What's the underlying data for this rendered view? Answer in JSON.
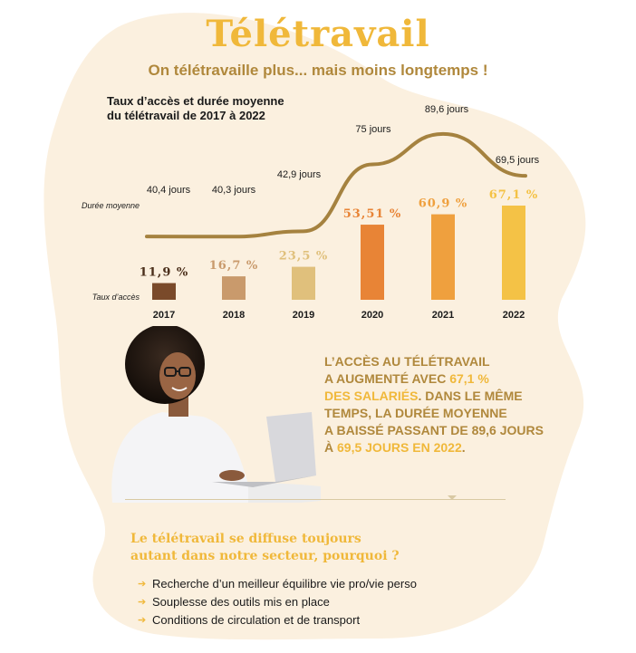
{
  "header": {
    "title": "Télétravail",
    "subtitle": "On télétravaille plus... mais moins longtemps !"
  },
  "chart_data": {
    "type": "bar",
    "title_lines": [
      "Taux d’accès et durée moyenne",
      "du télétravail de 2017 à 2022"
    ],
    "categories": [
      "2017",
      "2018",
      "2019",
      "2020",
      "2021",
      "2022"
    ],
    "series": [
      {
        "name": "Taux d’accès",
        "type": "bar",
        "values": [
          11.9,
          16.7,
          23.5,
          53.51,
          60.9,
          67.1
        ],
        "labels": [
          "11,9 %",
          "16,7 %",
          "23,5 %",
          "53,51 %",
          "60,9 %",
          "67,1 %"
        ],
        "colors": [
          "#7a4a2a",
          "#c99a6c",
          "#e0c07c",
          "#e88436",
          "#efa03e",
          "#f4c246"
        ],
        "label_colors": [
          "#4a2e1a",
          "#c99a6c",
          "#e0c07c",
          "#e88436",
          "#efa03e",
          "#f4c246"
        ]
      },
      {
        "name": "Durée moyenne",
        "type": "line",
        "values": [
          40.4,
          40.3,
          42.9,
          75,
          89.6,
          69.5
        ],
        "labels": [
          "40,4 jours",
          "40,3 jours",
          "42,9 jours",
          "75 jours",
          "89,6 jours",
          "69,5 jours"
        ],
        "color": "#a5823f"
      }
    ]
  },
  "callout": {
    "line1": "L’ACCÈS AU TÉLÉTRAVAIL",
    "line2a": "A AUGMENTÉ AVEC ",
    "line2b": "67,1 %",
    "line3a": "DES SALARIÉS",
    "line3b": ". DANS LE MÊME",
    "line4": "TEMPS, LA DURÉE MOYENNE",
    "line5": "A BAISSÉ PASSANT DE 89,6 JOURS",
    "line6a": "À ",
    "line6b": "69,5 JOURS EN 2022",
    "line6c": "."
  },
  "question": {
    "line1": "Le télétravail se diffuse toujours",
    "line2": "autant dans notre secteur, pourquoi ?"
  },
  "reasons": [
    "Recherche d’un meilleur équilibre vie pro/vie perso",
    "Souplesse des outils mis en place",
    "Conditions de circulation et de transport"
  ],
  "colors": {
    "blob": "#fbf0df",
    "accent": "#f0b83a",
    "brown": "#b0883c"
  }
}
